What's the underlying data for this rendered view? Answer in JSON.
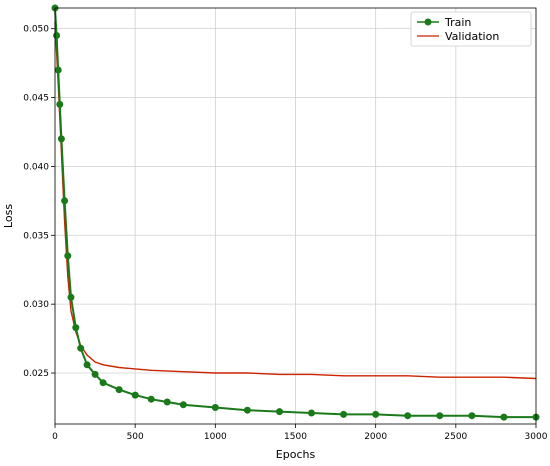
{
  "chart_data": {
    "type": "line",
    "title": "",
    "xlabel": "Epochs",
    "ylabel": "Loss",
    "xlim": [
      0,
      3000
    ],
    "ylim": [
      0.0213,
      0.0515
    ],
    "xticks": [
      0,
      500,
      1000,
      1500,
      2000,
      2500,
      3000
    ],
    "yticks": [
      0.025,
      0.03,
      0.035,
      0.04,
      0.045,
      0.05
    ],
    "ytick_labels": [
      "0.025",
      "0.030",
      "0.035",
      "0.040",
      "0.045",
      "0.050"
    ],
    "grid": true,
    "legend_position": "top-right",
    "series": [
      {
        "name": "Train",
        "color": "#1a7a1a",
        "marker": "circle",
        "x": [
          0,
          10,
          20,
          30,
          40,
          60,
          80,
          100,
          130,
          160,
          200,
          250,
          300,
          400,
          500,
          600,
          700,
          800,
          1000,
          1200,
          1400,
          1600,
          1800,
          2000,
          2200,
          2400,
          2600,
          2800,
          3000
        ],
        "y": [
          0.0515,
          0.0495,
          0.047,
          0.0445,
          0.042,
          0.0375,
          0.0335,
          0.0305,
          0.0283,
          0.0268,
          0.0256,
          0.0249,
          0.0243,
          0.0238,
          0.0234,
          0.0231,
          0.0229,
          0.0227,
          0.0225,
          0.0223,
          0.0222,
          0.0221,
          0.022,
          0.022,
          0.0219,
          0.0219,
          0.0219,
          0.0218,
          0.0218
        ]
      },
      {
        "name": "Validation",
        "color": "#cc2200",
        "marker": "none",
        "x": [
          0,
          20,
          40,
          60,
          80,
          100,
          130,
          160,
          200,
          250,
          300,
          400,
          500,
          600,
          800,
          1000,
          1200,
          1400,
          1600,
          1800,
          2000,
          2200,
          2400,
          2600,
          2800,
          3000
        ],
        "y": [
          0.0505,
          0.046,
          0.041,
          0.036,
          0.032,
          0.0295,
          0.028,
          0.027,
          0.0263,
          0.0258,
          0.0256,
          0.0254,
          0.0253,
          0.0252,
          0.0251,
          0.025,
          0.025,
          0.0249,
          0.0249,
          0.0248,
          0.0248,
          0.0248,
          0.0247,
          0.0247,
          0.0247,
          0.0246
        ]
      }
    ]
  }
}
